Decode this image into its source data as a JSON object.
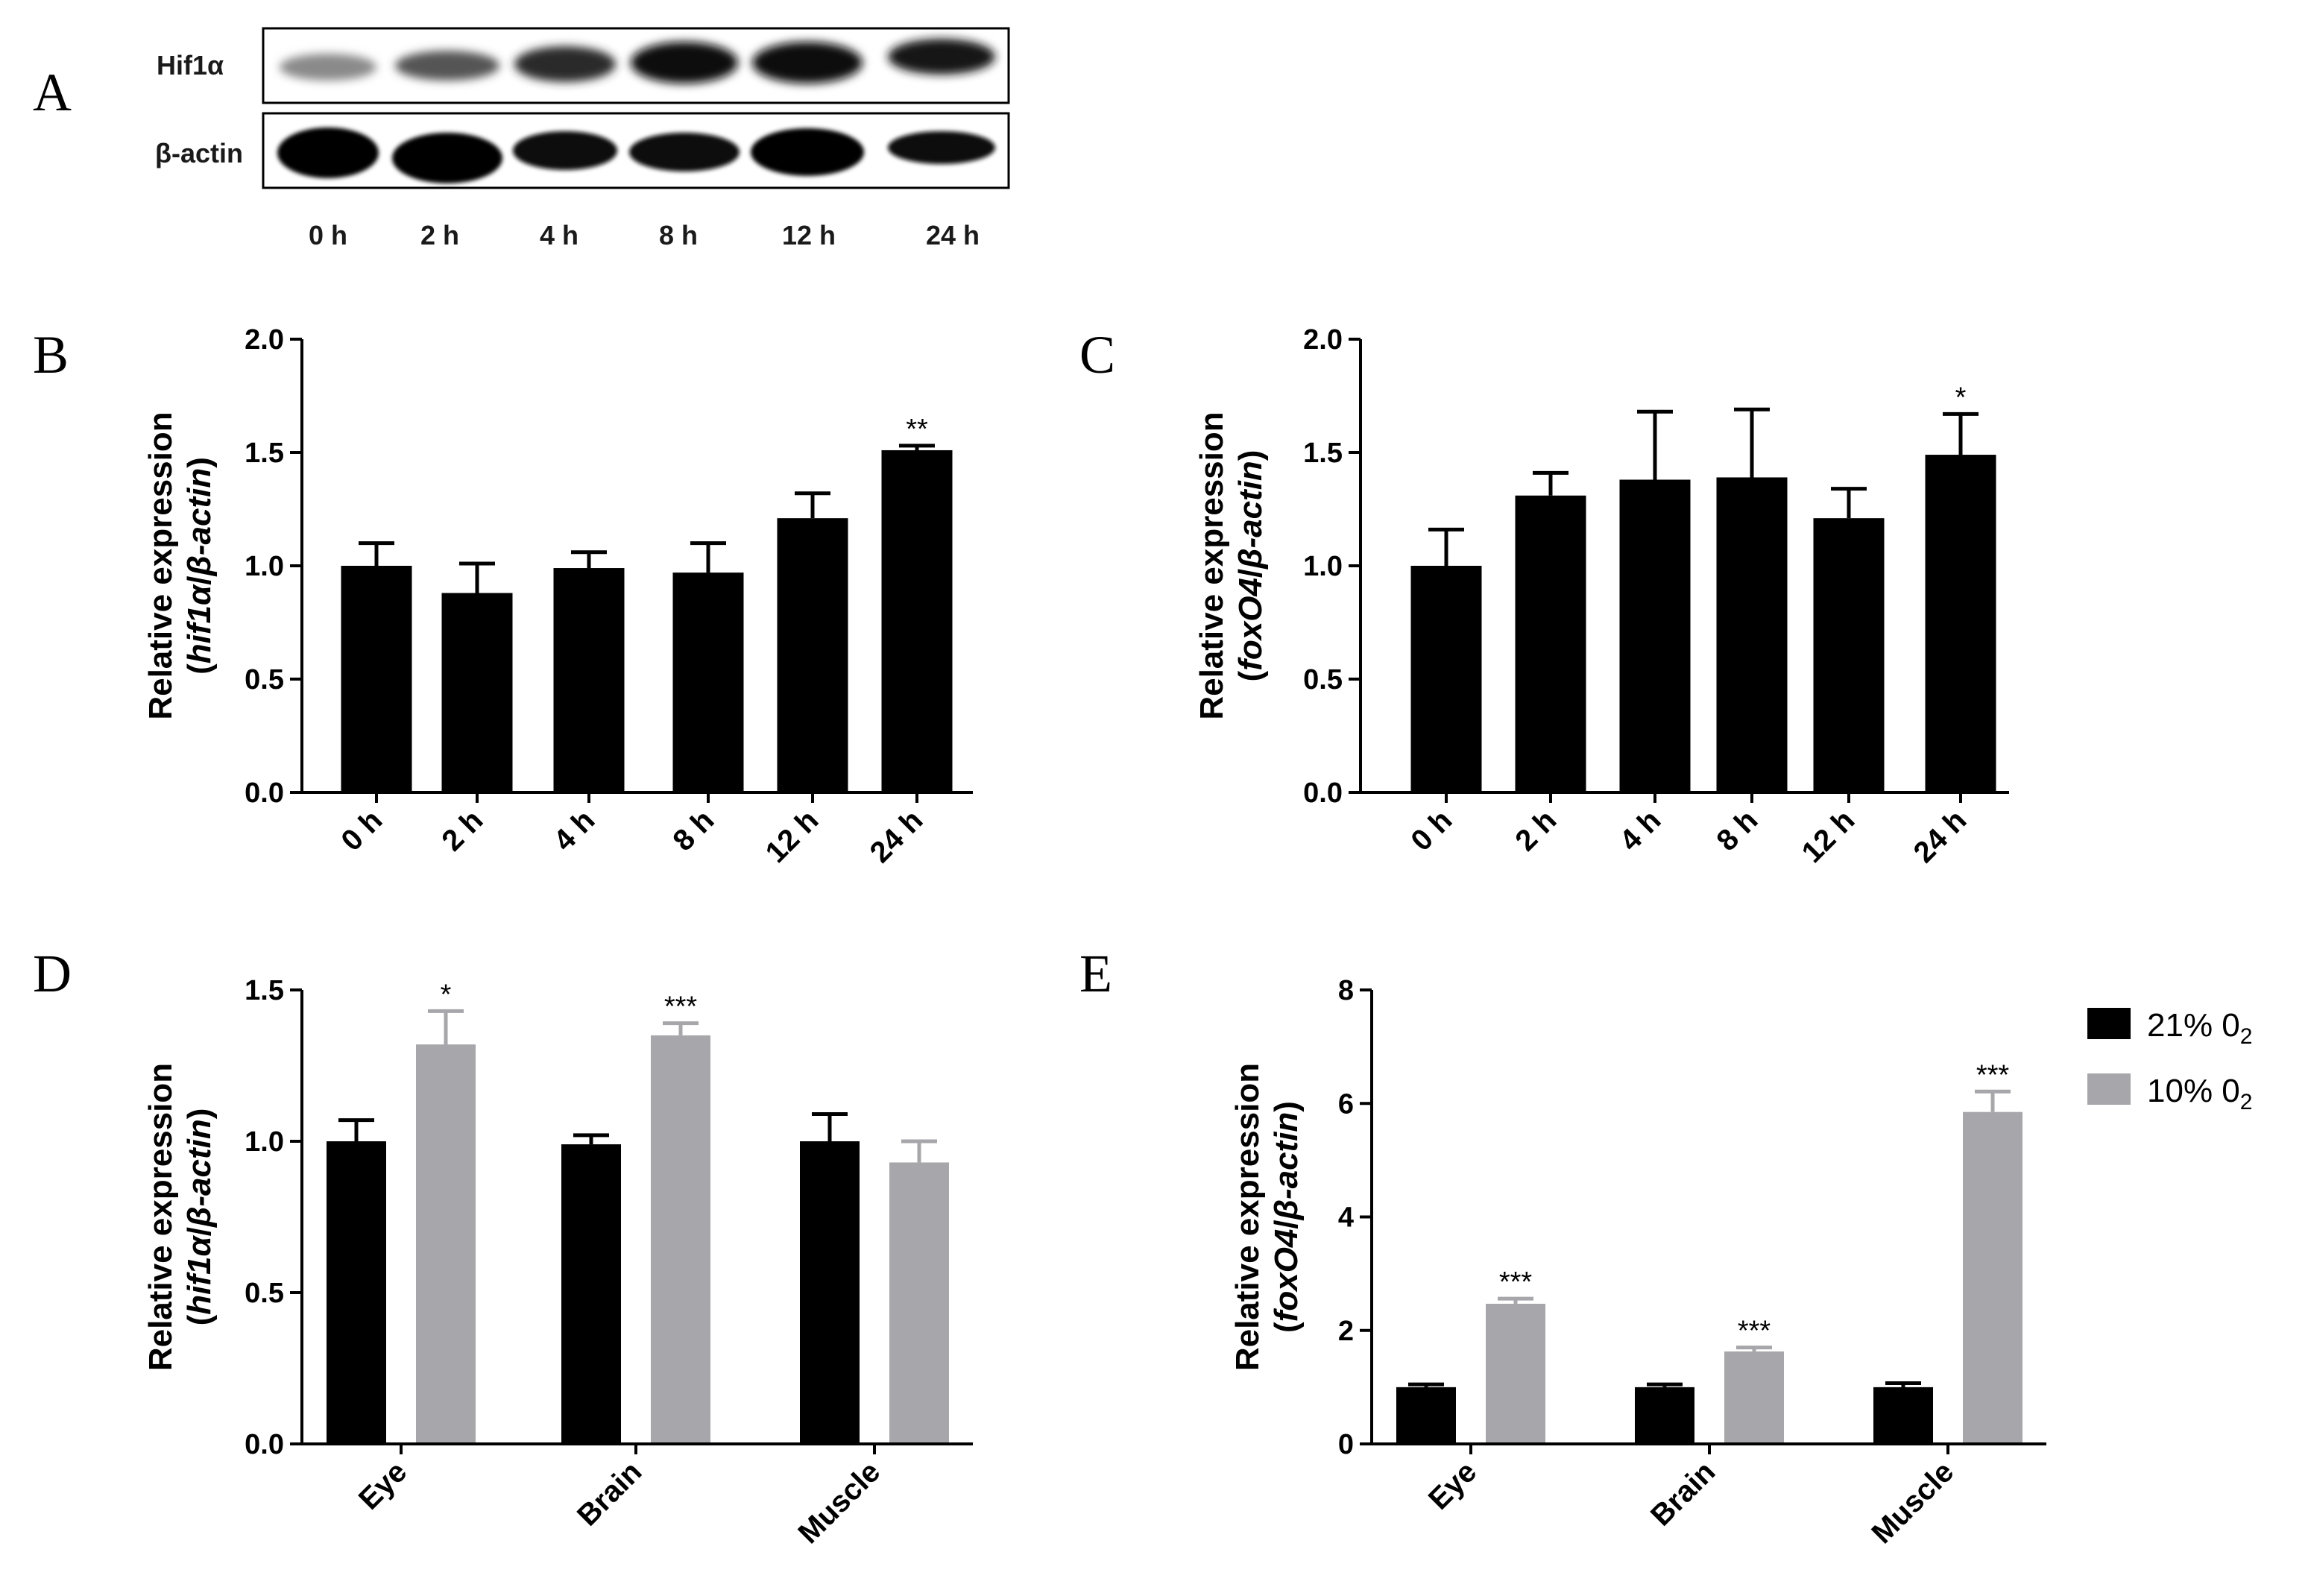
{
  "panels": {
    "A": "A",
    "B": "B",
    "C": "C",
    "D": "D",
    "E": "E"
  },
  "blot": {
    "row_labels": [
      "Hif1α",
      "β-actin"
    ],
    "lane_labels": [
      "0 h",
      "2 h",
      "4 h",
      "8 h",
      "12 h",
      "24 h"
    ]
  },
  "legend": [
    {
      "label": "21% 0",
      "sub": "2",
      "color": "#000000"
    },
    {
      "label": "10% 0",
      "sub": "2",
      "color": "#a7a7ab"
    }
  ],
  "chart_data": [
    {
      "id": "B",
      "type": "bar",
      "categories": [
        "0 h",
        "2 h",
        "4 h",
        "8 h",
        "12 h",
        "24 h"
      ],
      "series": [
        {
          "values": [
            1.0,
            0.88,
            0.99,
            0.97,
            1.21,
            1.51
          ],
          "errors": [
            0.1,
            0.13,
            0.07,
            0.13,
            0.11,
            0.02
          ],
          "color": "#000000"
        }
      ],
      "annotations": [
        "",
        "",
        "",
        "",
        "",
        "**"
      ],
      "ylabel_line1": "Relative expression",
      "ylabel_line2": {
        "open": "(",
        "gene": "hif1α",
        "sep": "/",
        "ref": "β-actin",
        "close": ")"
      },
      "ylim": [
        0,
        2.0
      ],
      "yticks": [
        "0.0",
        "0.5",
        "1.0",
        "1.5",
        "2.0"
      ]
    },
    {
      "id": "C",
      "type": "bar",
      "categories": [
        "0 h",
        "2 h",
        "4 h",
        "8 h",
        "12 h",
        "24 h"
      ],
      "series": [
        {
          "values": [
            1.0,
            1.31,
            1.38,
            1.39,
            1.21,
            1.49
          ],
          "errors": [
            0.16,
            0.1,
            0.3,
            0.3,
            0.13,
            0.18
          ],
          "color": "#000000"
        }
      ],
      "annotations": [
        "",
        "",
        "",
        "",
        "",
        "*"
      ],
      "ylabel_line1": "Relative expression",
      "ylabel_line2": {
        "open": "(",
        "gene": "foxO4",
        "sep": "/",
        "ref": "β-actin",
        "close": ")"
      },
      "ylim": [
        0,
        2.0
      ],
      "yticks": [
        "0.0",
        "0.5",
        "1.0",
        "1.5",
        "2.0"
      ]
    },
    {
      "id": "D",
      "type": "bar",
      "categories": [
        "Eye",
        "Brain",
        "Muscle"
      ],
      "series": [
        {
          "values": [
            1.0,
            0.99,
            1.0
          ],
          "errors": [
            0.07,
            0.03,
            0.09
          ],
          "color": "#000000"
        },
        {
          "values": [
            1.32,
            1.35,
            0.93
          ],
          "errors": [
            0.11,
            0.04,
            0.07
          ],
          "color": "#a7a7ab"
        }
      ],
      "annotations": [
        [
          "",
          "*"
        ],
        [
          "",
          "***"
        ],
        [
          "",
          ""
        ]
      ],
      "ylabel_line1": "Relative expression",
      "ylabel_line2": {
        "open": "(",
        "gene": "hif1α",
        "sep": "/",
        "ref": "β-actin",
        "close": ")"
      },
      "ylim": [
        0,
        1.5
      ],
      "yticks": [
        "0.0",
        "0.5",
        "1.0",
        "1.5"
      ]
    },
    {
      "id": "E",
      "type": "bar",
      "categories": [
        "Eye",
        "Brain",
        "Muscle"
      ],
      "series": [
        {
          "values": [
            1.0,
            1.0,
            1.0
          ],
          "errors": [
            0.05,
            0.05,
            0.07
          ],
          "color": "#000000"
        },
        {
          "values": [
            2.47,
            1.63,
            5.85
          ],
          "errors": [
            0.09,
            0.07,
            0.36
          ],
          "color": "#a7a7ab"
        }
      ],
      "annotations": [
        [
          "",
          "***"
        ],
        [
          "",
          "***"
        ],
        [
          "",
          "***"
        ]
      ],
      "ylabel_line1": "Relative expression",
      "ylabel_line2": {
        "open": "(",
        "gene": "foxO4",
        "sep": "/",
        "ref": "β-actin",
        "close": ")"
      },
      "ylim": [
        0,
        8
      ],
      "yticks": [
        "0",
        "2",
        "4",
        "6",
        "8"
      ]
    }
  ]
}
